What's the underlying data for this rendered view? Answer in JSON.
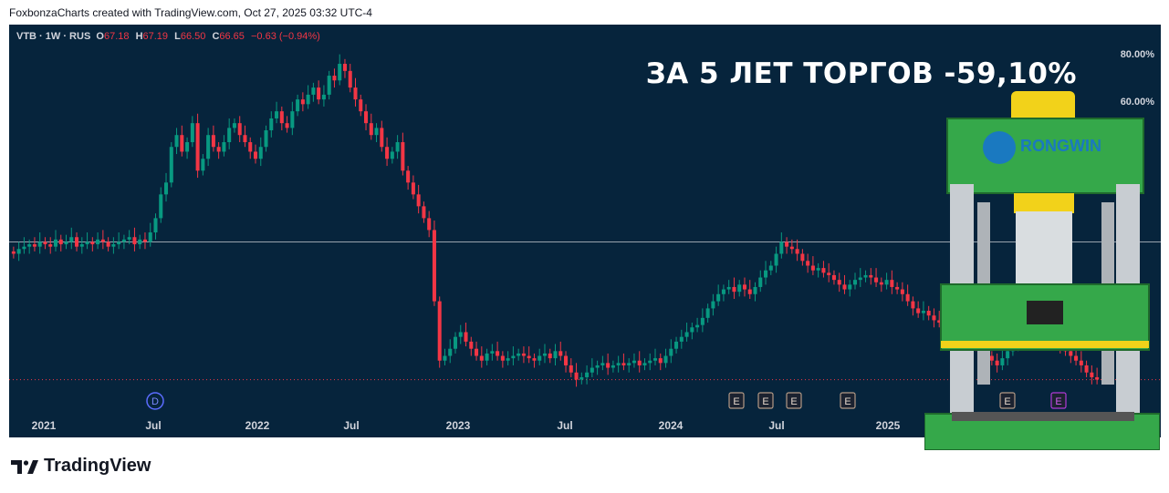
{
  "credit": "FoxbonzaCharts created with TradingView.com, Oct 27, 2025 03:32 UTC-4",
  "legend": {
    "symbol": "VTB · 1W · RUS",
    "open_key": "O",
    "open": "67.18",
    "high_key": "H",
    "high": "67.19",
    "low_key": "L",
    "low": "66.50",
    "close_key": "C",
    "close": "66.65",
    "change": "−0.63 (−0.94%)"
  },
  "headline": "ЗА 5 ЛЕТ ТОРГОВ -59,10%",
  "branding": {
    "name": "TradingView"
  },
  "overlay": {
    "brand_text": "RONGWIN"
  },
  "colors": {
    "background": "#06243c",
    "up": "#089981",
    "down": "#f23645",
    "text": "#d1d4dc"
  },
  "chart_data": {
    "type": "candlestick",
    "symbol": "VTB",
    "interval": "1W",
    "x_tick_labels": [
      "2021",
      "Jul",
      "2022",
      "Jul",
      "2023",
      "Jul",
      "2024",
      "Jul",
      "2025"
    ],
    "y_tick_labels": [
      "80.00%",
      "60.00%"
    ],
    "reference_line_pct": 0,
    "event_markers": [
      {
        "label": "D",
        "date": "2021-07"
      },
      {
        "label": "E",
        "date": "2024-04"
      },
      {
        "label": "E",
        "date": "2024-05"
      },
      {
        "label": "E",
        "date": "2024-07"
      },
      {
        "label": "E",
        "date": "2024-10"
      },
      {
        "label": "E",
        "date": "2025-07"
      },
      {
        "label": "E",
        "date": "2025-10"
      }
    ],
    "series_close_pct": [
      [
        -5,
        -3,
        -2,
        -1,
        -2,
        0,
        -1,
        -2,
        1,
        -1,
        0,
        2,
        -2,
        -1,
        0,
        -1,
        1,
        0,
        -2,
        -1,
        0,
        1,
        2,
        -1,
        1,
        0,
        4,
        10,
        20,
        25,
        40,
        45,
        38,
        42,
        50,
        30,
        35,
        45,
        40,
        38,
        42,
        48,
        50,
        45,
        42,
        38,
        35,
        40,
        47,
        52,
        55,
        50,
        48,
        55,
        60,
        58,
        62,
        65,
        60,
        62,
        70,
        68,
        75,
        72,
        65,
        60,
        55,
        50,
        45,
        48,
        40,
        35,
        38,
        42,
        30,
        25,
        20,
        15,
        10,
        5,
        -25,
        -50,
        -48,
        -45,
        -40,
        -38,
        -42,
        -45,
        -48,
        -50,
        -47,
        -46,
        -48,
        -50,
        -49,
        -48,
        -47,
        -48,
        -49,
        -50,
        -48,
        -47,
        -49,
        -46,
        -48,
        -52,
        -55,
        -58,
        -57,
        -55,
        -53,
        -52,
        -51,
        -53,
        -52,
        -51,
        -52,
        -51,
        -50,
        -52,
        -51,
        -50,
        -49,
        -51,
        -48,
        -45,
        -42,
        -40,
        -38,
        -36,
        -35,
        -32,
        -28,
        -25,
        -22,
        -20,
        -19,
        -21,
        -18,
        -20,
        -22,
        -19,
        -15,
        -12,
        -10,
        -5,
        0,
        -2,
        -3,
        -5,
        -8,
        -10,
        -12,
        -11,
        -13,
        -14,
        -16,
        -18,
        -20,
        -18,
        -16,
        -15,
        -14,
        -15,
        -17,
        -18,
        -16,
        -19,
        -20,
        -22,
        -25,
        -28,
        -30,
        -29,
        -31,
        -33,
        -34,
        -35,
        -37,
        -38,
        -40,
        -39,
        -41,
        -43,
        -45,
        -48,
        -50,
        -52,
        -49,
        -46,
        -43,
        -40,
        -38,
        -36,
        -34,
        -33,
        -35,
        -38,
        -42,
        -44,
        -46,
        -48,
        -50,
        -52,
        -55,
        -57,
        -58
      ]
    ]
  }
}
